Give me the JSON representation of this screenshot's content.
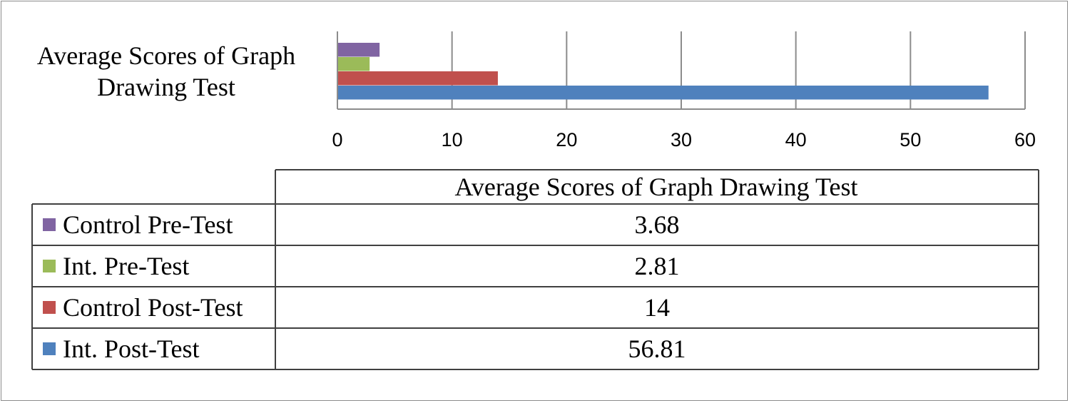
{
  "chart_data": {
    "type": "bar",
    "orientation": "horizontal",
    "categories": [
      "Average Scores of Graph Drawing Test"
    ],
    "category_label_lines": [
      "Average Scores of Graph",
      "Drawing Test"
    ],
    "series": [
      {
        "name": "Control Pre-Test",
        "values": [
          3.68
        ],
        "value_label": "3.68",
        "color": "#8064a2"
      },
      {
        "name": "Int. Pre-Test",
        "values": [
          2.81
        ],
        "value_label": "2.81",
        "color": "#9bbb59"
      },
      {
        "name": "Control Post-Test",
        "values": [
          14
        ],
        "value_label": "14",
        "color": "#c0504d"
      },
      {
        "name": "Int. Post-Test",
        "values": [
          56.81
        ],
        "value_label": "56.81",
        "color": "#4f81bd"
      }
    ],
    "xlim": [
      0,
      60
    ],
    "xticks": [
      0,
      10,
      20,
      30,
      40,
      50,
      60
    ],
    "xtick_labels": [
      "0",
      "10",
      "20",
      "30",
      "40",
      "50",
      "60"
    ],
    "grid": true,
    "legend": "data-table-below",
    "table_header": "Average Scores of Graph Drawing Test",
    "title": "",
    "xlabel": "",
    "ylabel": ""
  }
}
